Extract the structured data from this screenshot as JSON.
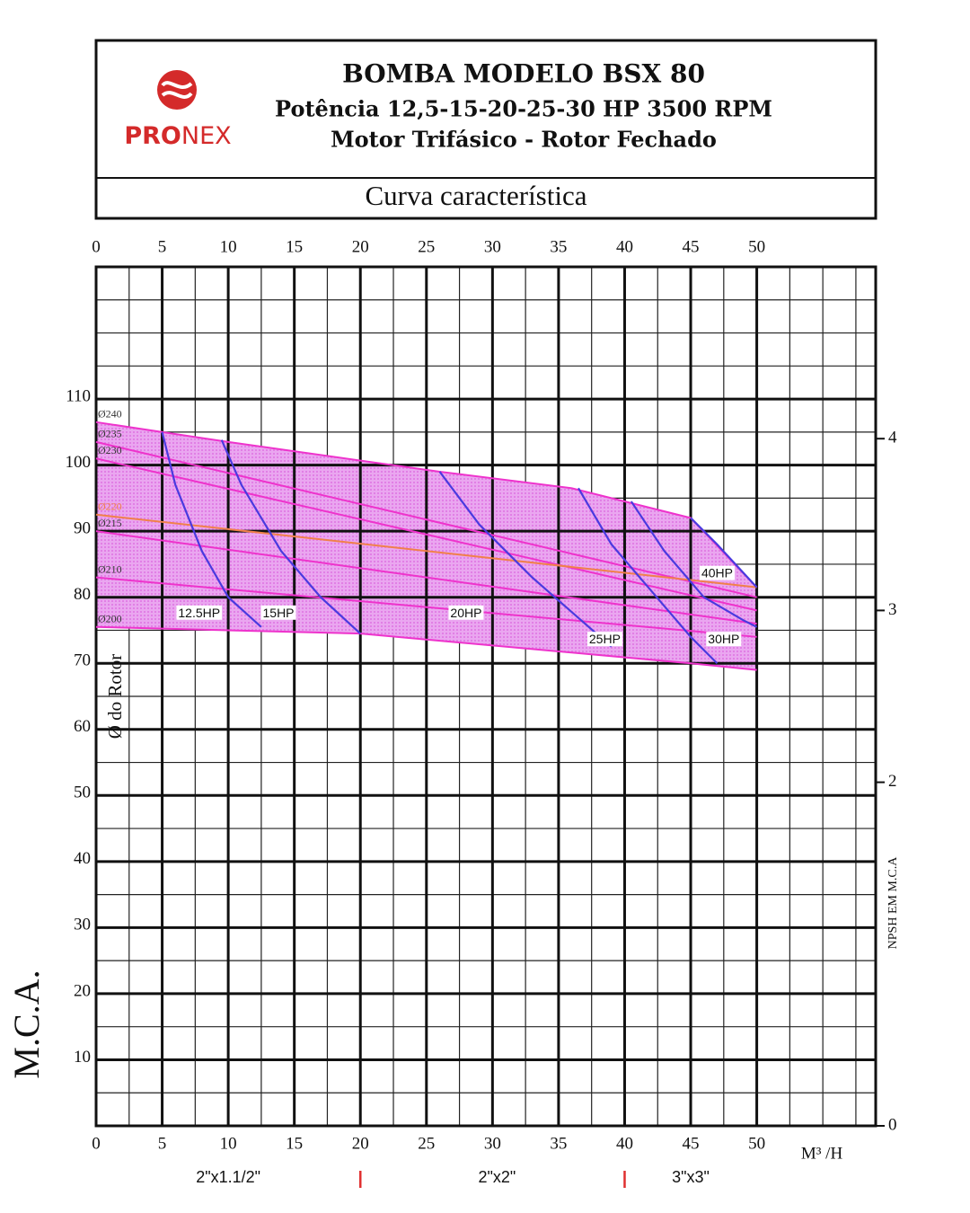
{
  "header": {
    "logo_parts": [
      "PRO",
      "NEX"
    ],
    "title": "BOMBA MODELO BSX 80",
    "subtitle": "Potência 12,5-15-20-25-30 HP 3500 RPM",
    "subtitle2": "Motor Trifásico - Rotor Fechado",
    "caption": "Curva característica"
  },
  "chart_data": {
    "type": "line",
    "x_label": "M³ /H",
    "y_label": "M.C.A.",
    "y2_label": "NPSH EM M.C.A",
    "rotor_label": "Ø do Rotor",
    "xlim": [
      0,
      59
    ],
    "xticks": [
      0,
      5,
      10,
      15,
      20,
      25,
      30,
      35,
      40,
      45,
      50
    ],
    "ylim": [
      0,
      130
    ],
    "yticks": [
      10,
      20,
      30,
      40,
      50,
      60,
      70,
      80,
      90,
      100,
      110
    ],
    "y2lim": [
      0,
      5
    ],
    "y2ticks": [
      0,
      2,
      3,
      4
    ],
    "grid": true,
    "envelope_color": "#eaa6f0",
    "series": [
      {
        "name": "Ø240",
        "color": "#ee33cc",
        "x": [
          0,
          5,
          10,
          26,
          36,
          45,
          50
        ],
        "values": [
          106.5,
          105,
          103.5,
          99,
          96.5,
          92,
          81.5
        ]
      },
      {
        "name": "Ø235",
        "color": "#ee33cc",
        "x": [
          0,
          50
        ],
        "values": [
          103.5,
          80
        ]
      },
      {
        "name": "Ø230",
        "color": "#ee33cc",
        "x": [
          0,
          50
        ],
        "values": [
          101,
          78
        ]
      },
      {
        "name": "Ø220",
        "color": "#f0804a",
        "x": [
          0,
          50
        ],
        "values": [
          92.5,
          81.5
        ]
      },
      {
        "name": "Ø215",
        "color": "#ee33cc",
        "x": [
          0,
          50
        ],
        "values": [
          90,
          76
        ]
      },
      {
        "name": "Ø210",
        "color": "#ee33cc",
        "x": [
          0,
          50
        ],
        "values": [
          83,
          74
        ]
      },
      {
        "name": "Ø200",
        "color": "#ee33cc",
        "x": [
          0,
          20,
          45,
          50
        ],
        "values": [
          75.5,
          74.5,
          70,
          69
        ]
      }
    ],
    "power_limit_color": "#4a3adf",
    "power_limits": [
      {
        "x": [
          5,
          6,
          8,
          10,
          12.5
        ],
        "values": [
          105,
          97,
          87,
          80,
          75.5
        ]
      },
      {
        "x": [
          9.5,
          11,
          14,
          17,
          20
        ],
        "values": [
          103.8,
          97,
          87,
          80,
          74.5
        ]
      },
      {
        "x": [
          26,
          29,
          33,
          37,
          39
        ],
        "values": [
          99,
          91,
          83,
          76,
          72.5
        ]
      },
      {
        "x": [
          36.5,
          39,
          42,
          45,
          47
        ],
        "values": [
          96.5,
          88,
          81,
          74,
          70
        ]
      },
      {
        "x": [
          40.5,
          43,
          46,
          49,
          50
        ],
        "values": [
          94.5,
          87,
          80,
          76.5,
          75.5
        ]
      },
      {
        "x": [
          45,
          47,
          50
        ],
        "values": [
          92,
          88,
          81.5
        ]
      }
    ],
    "annotations": [
      {
        "text": "12.5HP",
        "x": 7.8,
        "y": 77.5
      },
      {
        "text": "15HP",
        "x": 13.8,
        "y": 77.5
      },
      {
        "text": "20HP",
        "x": 28,
        "y": 77.5
      },
      {
        "text": "25HP",
        "x": 38.5,
        "y": 73.5
      },
      {
        "text": "30HP",
        "x": 47.5,
        "y": 73.5
      },
      {
        "text": "40HP",
        "x": 47,
        "y": 83.5
      }
    ],
    "pipe_sizes": [
      {
        "label": "2\"x1.1/2\"",
        "from": 0,
        "to": 20
      },
      {
        "label": "2\"x2\"",
        "from": 20,
        "to": 40
      },
      {
        "label": "3\"x3\"",
        "from": 40,
        "to": 50
      }
    ]
  }
}
